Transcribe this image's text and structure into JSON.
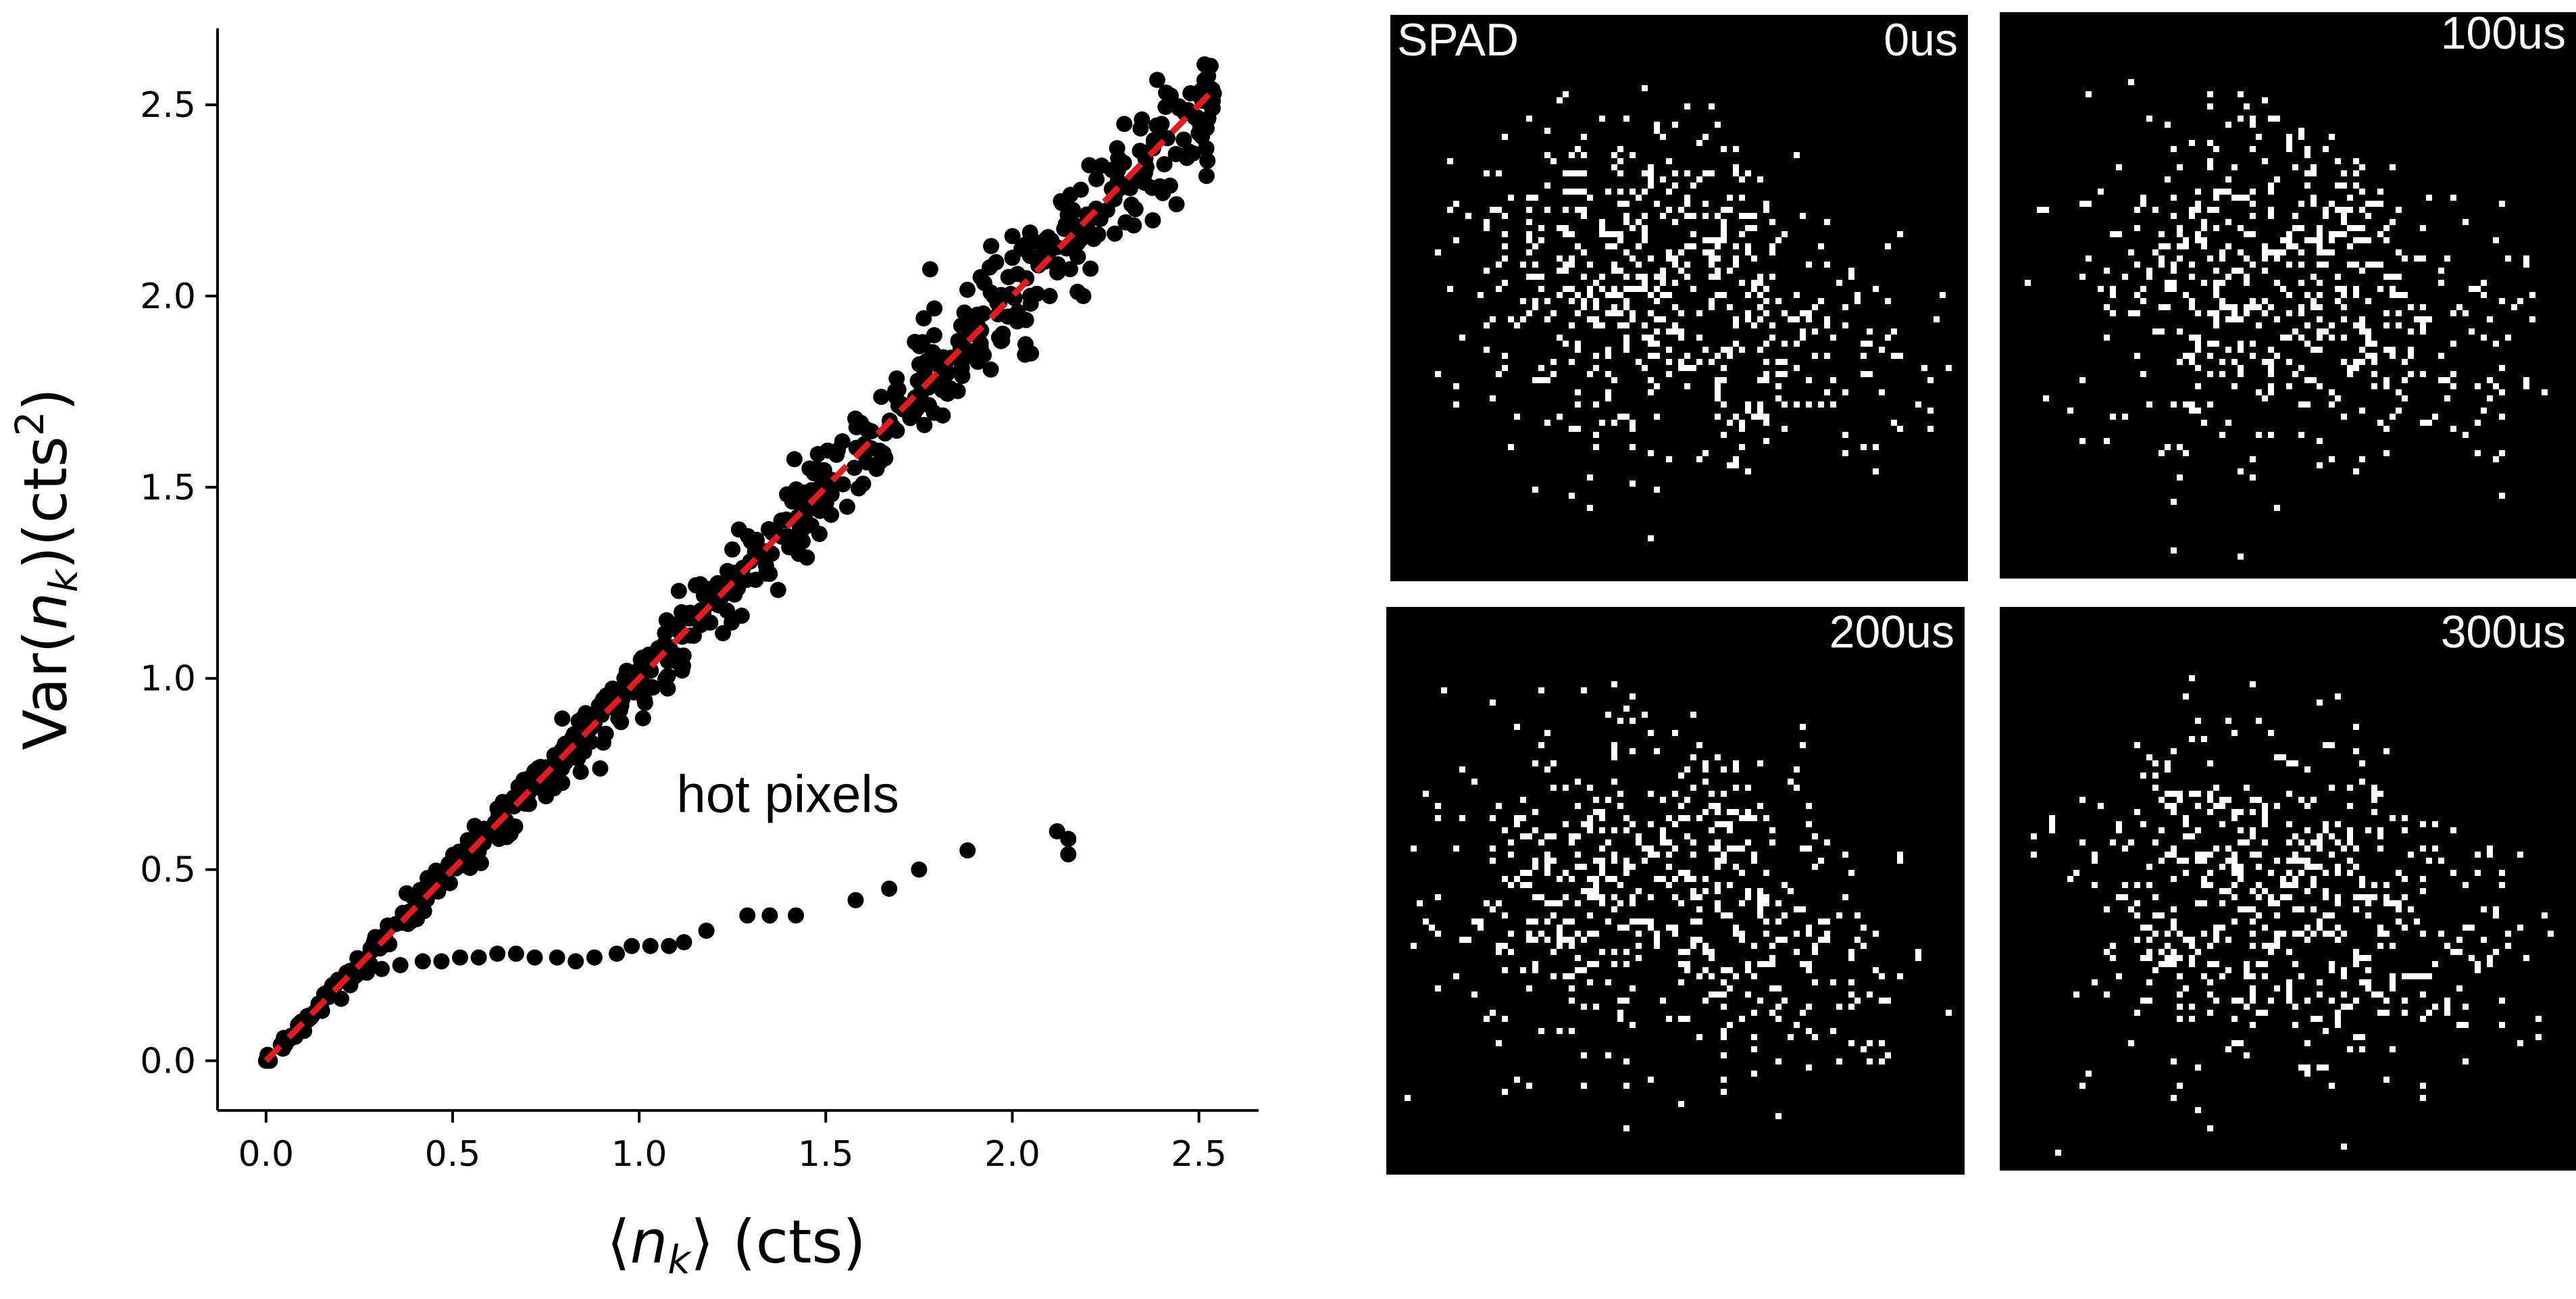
{
  "colors": {
    "points": "#000000",
    "fit_line": "#e41a1c",
    "panel_bg": "#000000",
    "panel_pixels": "#ffffff"
  },
  "chart_data": [
    {
      "type": "scatter",
      "title": "",
      "xlabel_parts": [
        "⟨",
        "n",
        "k",
        "⟩ (cts)"
      ],
      "ylabel_parts": [
        "Var(",
        "n",
        "k",
        ")(cts",
        "2",
        ")"
      ],
      "xlim": [
        -0.13,
        2.66
      ],
      "ylim": [
        -0.13,
        2.7
      ],
      "xticks": [
        0.0,
        0.5,
        1.0,
        1.5,
        2.0,
        2.5
      ],
      "yticks": [
        0.0,
        0.5,
        1.0,
        1.5,
        2.0,
        2.5
      ],
      "xtick_labels": [
        "0.0",
        "0.5",
        "1.0",
        "1.5",
        "2.0",
        "2.5"
      ],
      "ytick_labels": [
        "0.0",
        "0.5",
        "1.0",
        "1.5",
        "2.0",
        "2.5"
      ],
      "grid": false,
      "spines": "left-bottom",
      "main_cloud": {
        "n_points": 650,
        "x_range": [
          0.0,
          2.54
        ],
        "relation": "y ≈ x",
        "sample": [
          [
            0.0,
            0.0
          ],
          [
            0.3,
            0.3
          ],
          [
            0.8,
            0.8
          ],
          [
            1.2,
            1.2
          ],
          [
            1.6,
            1.59
          ],
          [
            1.78,
            2.07
          ],
          [
            2.0,
            2.1
          ],
          [
            2.05,
            1.85
          ],
          [
            2.07,
            2.08
          ],
          [
            2.1,
            2.0
          ],
          [
            2.19,
            2.0
          ],
          [
            2.3,
            2.45
          ],
          [
            2.4,
            2.45
          ],
          [
            2.44,
            2.24
          ],
          [
            2.54,
            2.53
          ]
        ]
      },
      "hot_pixels": [
        [
          0.27,
          0.23
        ],
        [
          0.31,
          0.24
        ],
        [
          0.36,
          0.25
        ],
        [
          0.42,
          0.26
        ],
        [
          0.47,
          0.26
        ],
        [
          0.52,
          0.27
        ],
        [
          0.57,
          0.27
        ],
        [
          0.62,
          0.28
        ],
        [
          0.67,
          0.28
        ],
        [
          0.72,
          0.27
        ],
        [
          0.78,
          0.27
        ],
        [
          0.83,
          0.26
        ],
        [
          0.88,
          0.27
        ],
        [
          0.94,
          0.28
        ],
        [
          0.98,
          0.3
        ],
        [
          1.03,
          0.3
        ],
        [
          1.08,
          0.3
        ],
        [
          1.12,
          0.31
        ],
        [
          1.18,
          0.34
        ],
        [
          1.29,
          0.38
        ],
        [
          1.35,
          0.38
        ],
        [
          1.42,
          0.38
        ],
        [
          1.58,
          0.42
        ],
        [
          1.67,
          0.45
        ],
        [
          1.75,
          0.5
        ],
        [
          1.88,
          0.55
        ],
        [
          2.12,
          0.6
        ],
        [
          2.15,
          0.58
        ],
        [
          2.15,
          0.54
        ]
      ],
      "fit_line": {
        "slope": 1.0,
        "intercept": 0.0,
        "x_range": [
          0.0,
          2.54
        ],
        "style": "dashed"
      },
      "annotations": [
        {
          "text": "hot pixels",
          "x": 1.1,
          "y": 0.65
        }
      ]
    },
    {
      "type": "heatmap",
      "panels": [
        {
          "label": "SPAD",
          "time": "0us"
        },
        {
          "label": "",
          "time": "100us"
        },
        {
          "label": "",
          "time": "200us"
        },
        {
          "label": "",
          "time": "300us"
        }
      ],
      "description_values": "sparse binary photon-count frames"
    }
  ]
}
